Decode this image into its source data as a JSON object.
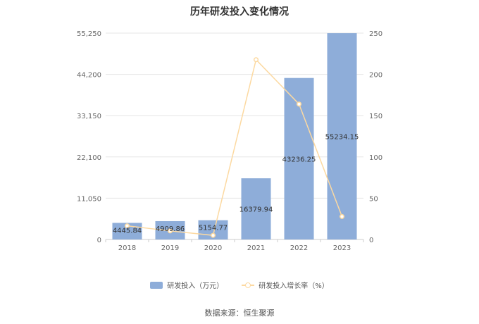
{
  "chart_data": {
    "type": "bar",
    "title": "历年研发投入变化情况",
    "categories": [
      "2018",
      "2019",
      "2020",
      "2021",
      "2022",
      "2023"
    ],
    "series": [
      {
        "name": "研发投入（万元）",
        "type": "bar",
        "axis": "left",
        "values": [
          4445.84,
          4909.86,
          5154.77,
          16379.94,
          43236.25,
          55234.15
        ],
        "labels": [
          "4445.84",
          "4909.86",
          "5154.77",
          "16379.94",
          "43236.25",
          "55234.15"
        ],
        "color": "#8eadd9"
      },
      {
        "name": "研发投入增长率（%）",
        "type": "line",
        "axis": "right",
        "values": [
          16.5,
          10.4,
          5.0,
          217.8,
          164.0,
          27.8
        ],
        "color": "#fcd9a1"
      }
    ],
    "y_left": {
      "ylim": [
        0,
        55250
      ],
      "ticks": [
        "0",
        "11,050",
        "22,100",
        "33,150",
        "44,200",
        "55,250"
      ],
      "tick_values": [
        0,
        11050,
        22100,
        33150,
        44200,
        55250
      ]
    },
    "y_right": {
      "ylim": [
        0,
        250
      ],
      "ticks": [
        "0",
        "50",
        "100",
        "150",
        "200",
        "250"
      ],
      "tick_values": [
        0,
        50,
        100,
        150,
        200,
        250
      ]
    },
    "grid": true,
    "legend_position": "bottom"
  },
  "source_text": "数据来源：恒生聚源"
}
